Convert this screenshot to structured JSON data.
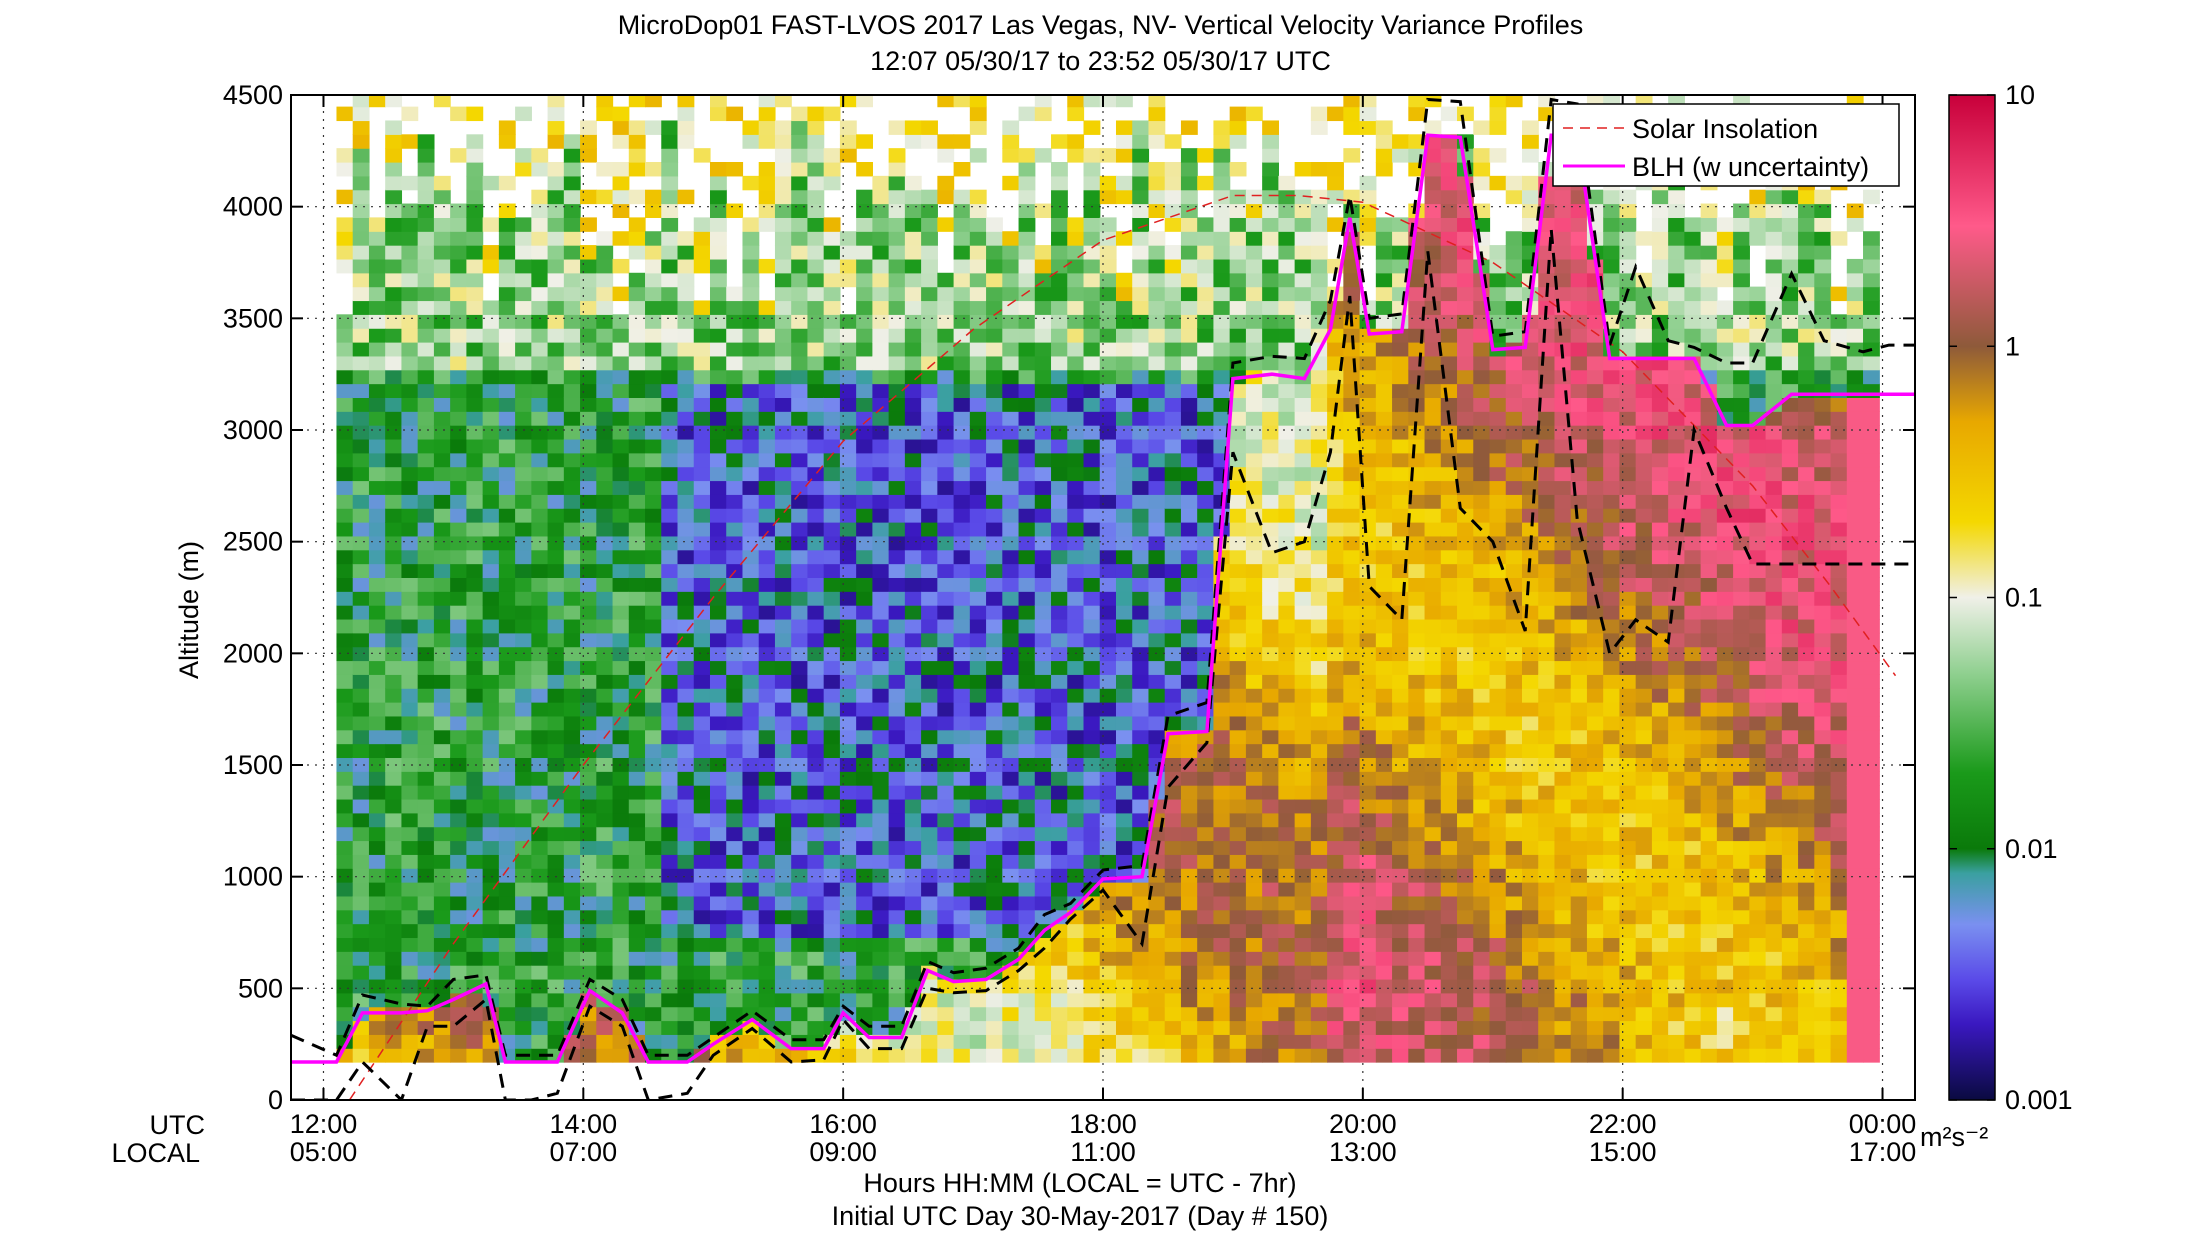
{
  "figure": {
    "title_line1": "MicroDop01 FAST-LVOS 2017 Las Vegas, NV- Vertical Velocity Variance Profiles",
    "title_line2": "12:07 05/30/17 to 23:52 05/30/17  UTC",
    "row_label_utc": "UTC",
    "row_label_local": "LOCAL",
    "xlabel": "Hours HH:MM  (LOCAL = UTC - 7hr)",
    "footer": "Initial UTC Day 30-May-2017 (Day # 150)",
    "colorbar_units": "m²s⁻²"
  },
  "chart_data": {
    "type": "heatmap",
    "ylabel": "Altitude (m)",
    "ylim": [
      0,
      4500
    ],
    "yticks": [
      0,
      500,
      1000,
      1500,
      2000,
      2500,
      3000,
      3500,
      4000,
      4500
    ],
    "xlim_hours_utc": [
      11.75,
      24.25
    ],
    "xticks_utc": [
      "12:00",
      "14:00",
      "16:00",
      "18:00",
      "20:00",
      "22:00",
      "00:00"
    ],
    "xticks_local": [
      "05:00",
      "07:00",
      "09:00",
      "11:00",
      "13:00",
      "15:00",
      "17:00"
    ],
    "grid": true,
    "legend_position": "top-right",
    "legend": [
      "Solar Insolation",
      "BLH (w uncertainty)"
    ],
    "colorbar": {
      "scale": "log",
      "range": [
        0.001,
        10
      ],
      "ticks": [
        "10",
        "1",
        "0.1",
        "0.01",
        "0.001"
      ],
      "colormap_stops": [
        {
          "value": 0.001,
          "color": "#0a0a40"
        },
        {
          "value": 0.002,
          "color": "#3a18c0"
        },
        {
          "value": 0.003,
          "color": "#5a4ae8"
        },
        {
          "value": 0.005,
          "color": "#7a90f0"
        },
        {
          "value": 0.008,
          "color": "#3aa0a0"
        },
        {
          "value": 0.01,
          "color": "#0a7a0a"
        },
        {
          "value": 0.02,
          "color": "#1a9a1a"
        },
        {
          "value": 0.05,
          "color": "#90d090"
        },
        {
          "value": 0.1,
          "color": "#f0f0e8"
        },
        {
          "value": 0.2,
          "color": "#f4d800"
        },
        {
          "value": 0.5,
          "color": "#e8a800"
        },
        {
          "value": 1,
          "color": "#8e5a3a"
        },
        {
          "value": 3,
          "color": "#ff5a8a"
        },
        {
          "value": 10,
          "color": "#c8003a"
        }
      ]
    },
    "blh_series": {
      "name": "BLH (w uncertainty)",
      "color": "#ff00ff",
      "x_hours_utc": [
        11.75,
        12.1,
        12.3,
        12.6,
        12.8,
        13.0,
        13.25,
        13.4,
        13.6,
        13.8,
        14.05,
        14.3,
        14.5,
        14.8,
        15.0,
        15.3,
        15.6,
        15.85,
        16.0,
        16.2,
        16.45,
        16.65,
        16.85,
        17.1,
        17.35,
        17.55,
        17.75,
        18.0,
        18.3,
        18.5,
        18.8,
        19.0,
        19.3,
        19.55,
        19.75,
        19.9,
        20.05,
        20.3,
        20.5,
        20.75,
        21.0,
        21.25,
        21.45,
        21.65,
        21.9,
        22.1,
        22.35,
        22.55,
        22.8,
        23.0,
        23.3,
        23.55,
        23.85,
        24.05,
        24.25
      ],
      "y_m": [
        170,
        170,
        390,
        390,
        400,
        450,
        520,
        170,
        170,
        170,
        490,
        390,
        170,
        170,
        250,
        360,
        230,
        230,
        390,
        280,
        280,
        580,
        530,
        540,
        630,
        760,
        840,
        990,
        1000,
        1640,
        1650,
        3230,
        3250,
        3230,
        3450,
        3950,
        3430,
        3440,
        4320,
        4310,
        3360,
        3370,
        4320,
        4320,
        3320,
        3320,
        3320,
        3320,
        3020,
        3020,
        3160,
        3160,
        3160,
        3160,
        3160
      ]
    },
    "blh_upper": {
      "x_hours_utc": [
        11.75,
        12.1,
        12.3,
        12.6,
        12.8,
        13.0,
        13.25,
        13.4,
        13.6,
        13.8,
        14.05,
        14.3,
        14.5,
        14.8,
        15.0,
        15.3,
        15.6,
        15.85,
        16.0,
        16.2,
        16.45,
        16.65,
        16.85,
        17.1,
        17.35,
        17.55,
        17.75,
        18.0,
        18.3,
        18.5,
        18.8,
        19.0,
        19.3,
        19.55,
        19.75,
        19.9,
        20.05,
        20.3,
        20.5,
        20.75,
        21.0,
        21.25,
        21.45,
        21.65,
        21.9,
        22.1,
        22.35,
        22.55,
        22.8,
        23.0,
        23.3,
        23.55,
        23.85,
        24.05,
        24.25
      ],
      "y_m": [
        290,
        200,
        470,
        430,
        420,
        540,
        560,
        200,
        200,
        200,
        540,
        450,
        200,
        200,
        280,
        400,
        270,
        270,
        420,
        330,
        330,
        620,
        570,
        590,
        680,
        830,
        880,
        1030,
        1050,
        1720,
        1780,
        3300,
        3330,
        3320,
        3580,
        4050,
        3500,
        3520,
        4480,
        4470,
        3420,
        3440,
        4480,
        4460,
        3380,
        3730,
        3400,
        3370,
        3300,
        3300,
        3700,
        3400,
        3350,
        3380,
        3380
      ]
    },
    "blh_lower": {
      "x_hours_utc": [
        11.75,
        12.1,
        12.3,
        12.6,
        12.8,
        13.0,
        13.25,
        13.4,
        13.6,
        13.8,
        14.05,
        14.3,
        14.5,
        14.8,
        15.0,
        15.3,
        15.6,
        15.85,
        16.0,
        16.2,
        16.45,
        16.65,
        16.85,
        17.1,
        17.35,
        17.55,
        17.75,
        18.0,
        18.3,
        18.5,
        18.8,
        19.0,
        19.3,
        19.55,
        19.75,
        19.9,
        20.05,
        20.3,
        20.5,
        20.75,
        21.0,
        21.25,
        21.45,
        21.65,
        21.9,
        22.1,
        22.35,
        22.55,
        22.8,
        23.0,
        23.3,
        23.55,
        23.85,
        24.05,
        24.25
      ],
      "y_m": [
        0,
        0,
        170,
        0,
        330,
        330,
        450,
        0,
        0,
        30,
        420,
        330,
        0,
        30,
        200,
        320,
        170,
        180,
        360,
        230,
        230,
        500,
        480,
        490,
        580,
        680,
        810,
        940,
        700,
        1400,
        1600,
        2900,
        2450,
        2500,
        2900,
        3600,
        2300,
        2150,
        3800,
        2650,
        2500,
        2100,
        3900,
        2600,
        2000,
        2150,
        2050,
        3000,
        2650,
        2400,
        2400,
        2400,
        2400,
        2400,
        2400
      ]
    },
    "solar_series": {
      "name": "Solar Insolation",
      "color": "#e02020",
      "x_hours_utc": [
        12.2,
        13.0,
        14.0,
        15.0,
        16.0,
        17.0,
        18.0,
        19.0,
        19.5,
        20.0,
        21.0,
        22.0,
        23.0,
        23.6,
        24.1
      ],
      "y_m": [
        0,
        700,
        1500,
        2250,
        2950,
        3450,
        3850,
        4050,
        4050,
        4020,
        3750,
        3350,
        2750,
        2300,
        1900
      ]
    }
  }
}
